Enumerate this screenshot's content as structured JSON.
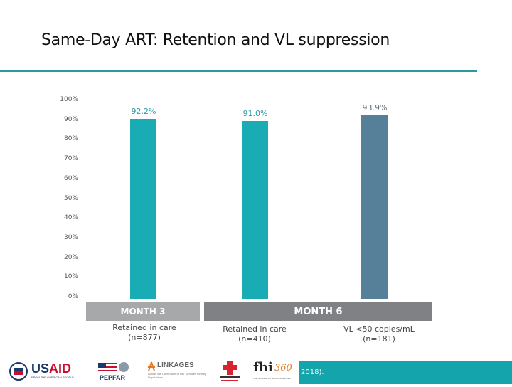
{
  "slide": {
    "title": "Same-Day ART: Retention and VL suppression",
    "accent_color": "#2a9a9e",
    "footer_citation_fragment": "2018)."
  },
  "chart_data": {
    "type": "bar",
    "title": "",
    "xlabel": "",
    "ylabel": "",
    "ylim": [
      0,
      100
    ],
    "y_ticks": [
      "0%",
      "10%",
      "20%",
      "30%",
      "40%",
      "50%",
      "60%",
      "70%",
      "80%",
      "90%",
      "100%"
    ],
    "groups": [
      {
        "label": "MONTH 3",
        "color": "#a7a8aa"
      },
      {
        "label": "MONTH 6",
        "color": "#808184"
      }
    ],
    "categories": [
      "Retained in care (n=877)",
      "Retained in care (n=410)",
      "VL <50 copies/mL (n=181)"
    ],
    "category_lines": [
      [
        "Retained in care",
        "(n=877)"
      ],
      [
        "Retained in care",
        "(n=410)"
      ],
      [
        "VL <50 copies/mL",
        "(n=181)"
      ]
    ],
    "values": [
      92.2,
      91.0,
      93.9
    ],
    "value_labels": [
      "92.2%",
      "91.0%",
      "93.9%"
    ],
    "bar_colors": [
      "#1aacb4",
      "#1aacb4",
      "#567f99"
    ],
    "grid": false,
    "legend": "none"
  },
  "logos": {
    "usaid": {
      "name": "USAID",
      "tagline": "FROM THE AMERICAN PEOPLE"
    },
    "pepfar": {
      "name": "PEPFAR"
    },
    "linkages": {
      "name": "LINKAGES",
      "tagline": "Across the Continuum of HIV Services for Key Populations"
    },
    "thai_red_cross": {
      "name": "Thai Red Cross"
    },
    "fhi360": {
      "name": "fhi360",
      "tagline": "THE SCIENCE OF IMPROVING LIVES"
    }
  }
}
